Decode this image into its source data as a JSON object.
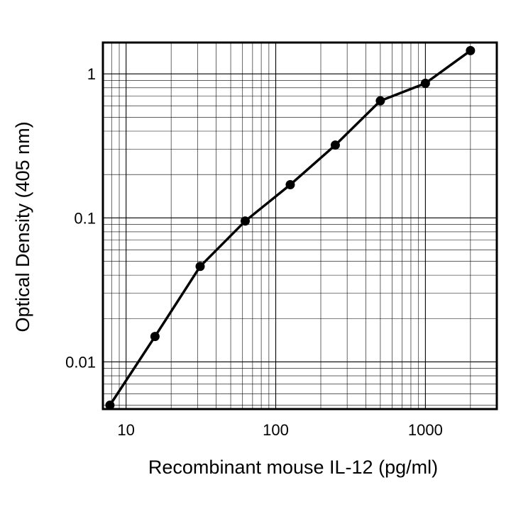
{
  "chart_data": {
    "type": "line",
    "title": "",
    "xlabel": "Recombinant mouse IL-12 (pg/ml)",
    "ylabel": "Optical Density (405 nm)",
    "x_scale": "log",
    "y_scale": "log",
    "xlim": [
      7,
      3000
    ],
    "ylim": [
      0.0047,
      1.65
    ],
    "grid": true,
    "x_ticks": [
      {
        "value": 10,
        "label": "10"
      },
      {
        "value": 100,
        "label": "100"
      },
      {
        "value": 1000,
        "label": "1000"
      }
    ],
    "y_ticks": [
      {
        "value": 0.01,
        "label": "0.01"
      },
      {
        "value": 0.1,
        "label": "0.1"
      },
      {
        "value": 1,
        "label": "1"
      }
    ],
    "series": [
      {
        "x": [
          7.8,
          15.6,
          31.25,
          62.5,
          125,
          250,
          500,
          1000,
          2000
        ],
        "y": [
          0.005,
          0.015,
          0.046,
          0.095,
          0.17,
          0.32,
          0.65,
          0.86,
          1.45
        ]
      }
    ]
  }
}
